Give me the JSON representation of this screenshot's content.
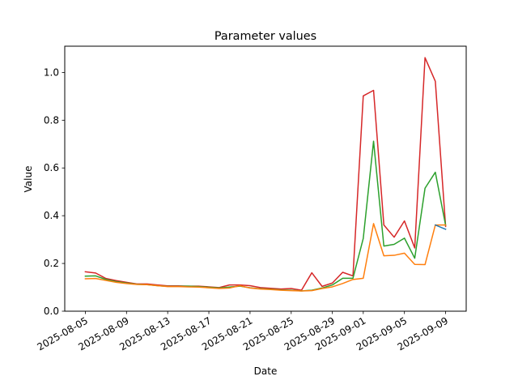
{
  "chart_data": {
    "type": "line",
    "title": "Parameter values",
    "xlabel": "Date",
    "ylabel": "Value",
    "xlim": [
      "2025-08-03",
      "2025-09-11"
    ],
    "ylim": [
      0,
      1.11
    ],
    "x_ticks": [
      "2025-08-05",
      "2025-08-09",
      "2025-08-13",
      "2025-08-17",
      "2025-08-21",
      "2025-08-25",
      "2025-08-29",
      "2025-09-01",
      "2025-09-05",
      "2025-09-09"
    ],
    "y_ticks": [
      "0.0",
      "0.2",
      "0.4",
      "0.6",
      "0.8",
      "1.0"
    ],
    "grid": false,
    "legend": false,
    "x": [
      "2025-08-05",
      "2025-08-06",
      "2025-08-07",
      "2025-08-08",
      "2025-08-09",
      "2025-08-10",
      "2025-08-11",
      "2025-08-12",
      "2025-08-13",
      "2025-08-14",
      "2025-08-15",
      "2025-08-16",
      "2025-08-17",
      "2025-08-18",
      "2025-08-19",
      "2025-08-20",
      "2025-08-21",
      "2025-08-22",
      "2025-08-23",
      "2025-08-24",
      "2025-08-25",
      "2025-08-26",
      "2025-08-27",
      "2025-08-28",
      "2025-08-29",
      "2025-08-30",
      "2025-08-31",
      "2025-09-01",
      "2025-09-02",
      "2025-09-03",
      "2025-09-04",
      "2025-09-05",
      "2025-09-06",
      "2025-09-07",
      "2025-09-08",
      "2025-09-09"
    ],
    "series": [
      {
        "color": "#d62728",
        "values": [
          0.165,
          0.16,
          0.137,
          0.128,
          0.121,
          0.114,
          0.114,
          0.11,
          0.106,
          0.106,
          0.105,
          0.105,
          0.102,
          0.099,
          0.11,
          0.11,
          0.107,
          0.099,
          0.096,
          0.093,
          0.095,
          0.088,
          0.161,
          0.104,
          0.118,
          0.163,
          0.148,
          0.902,
          0.925,
          0.361,
          0.31,
          0.378,
          0.265,
          1.062,
          0.963,
          0.355
        ]
      },
      {
        "color": "#2ca02c",
        "values": [
          0.147,
          0.148,
          0.133,
          0.124,
          0.118,
          0.113,
          0.111,
          0.107,
          0.104,
          0.104,
          0.105,
          0.103,
          0.1,
          0.097,
          0.101,
          0.105,
          0.098,
          0.094,
          0.092,
          0.089,
          0.088,
          0.085,
          0.088,
          0.097,
          0.11,
          0.138,
          0.138,
          0.305,
          0.712,
          0.273,
          0.28,
          0.306,
          0.222,
          0.515,
          0.582,
          0.36
        ]
      },
      {
        "color": "#ff7f0e",
        "values": [
          0.136,
          0.137,
          0.129,
          0.121,
          0.116,
          0.112,
          0.111,
          0.107,
          0.103,
          0.103,
          0.102,
          0.101,
          0.098,
          0.095,
          0.097,
          0.107,
          0.097,
          0.093,
          0.091,
          0.088,
          0.086,
          0.085,
          0.086,
          0.095,
          0.102,
          0.116,
          0.133,
          0.138,
          0.367,
          0.232,
          0.234,
          0.243,
          0.196,
          0.195,
          0.361,
          0.361
        ]
      },
      {
        "color": "#1f77b4",
        "values": [
          null,
          null,
          null,
          null,
          null,
          null,
          null,
          null,
          null,
          null,
          null,
          null,
          null,
          null,
          null,
          null,
          null,
          null,
          null,
          null,
          null,
          null,
          null,
          null,
          null,
          null,
          null,
          null,
          null,
          null,
          null,
          null,
          null,
          null,
          0.361,
          0.343
        ]
      }
    ]
  }
}
